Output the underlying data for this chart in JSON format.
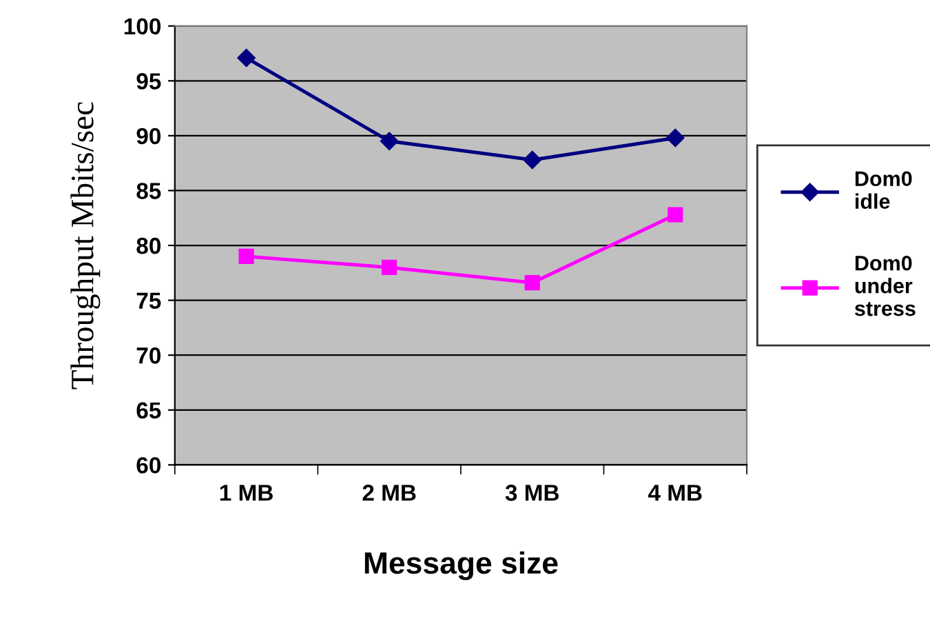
{
  "chart_data": {
    "type": "line",
    "xlabel": "Message size",
    "ylabel": "Throughput Mbits/sec",
    "categories": [
      "1 MB",
      "2 MB",
      "3 MB",
      "4 MB"
    ],
    "series": [
      {
        "name": "Dom0 idle",
        "color": "#000080",
        "values": [
          97.1,
          89.5,
          87.8,
          89.8
        ],
        "marker": "diamond"
      },
      {
        "name": "Dom0 under stress",
        "color": "#ff00ff",
        "values": [
          79.0,
          78.0,
          76.6,
          82.8
        ],
        "marker": "square"
      }
    ],
    "ylim": [
      60,
      100
    ],
    "yticks": [
      60,
      65,
      70,
      75,
      80,
      85,
      90,
      95,
      100
    ],
    "grid": "y",
    "legend": "right"
  }
}
